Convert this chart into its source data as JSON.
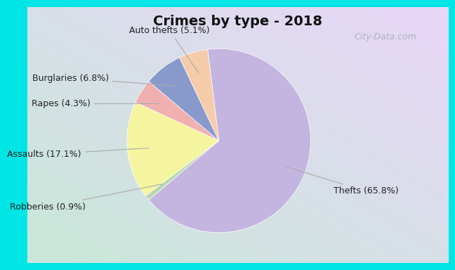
{
  "title": "Crimes by type - 2018",
  "slices": [
    {
      "label": "Thefts (65.8%)",
      "value": 65.8,
      "color": "#c4b5e0"
    },
    {
      "label": "Robberies (0.9%)",
      "value": 0.9,
      "color": "#b8d8b0"
    },
    {
      "label": "Assaults (17.1%)",
      "value": 17.1,
      "color": "#f5f5a0"
    },
    {
      "label": "Rapes (4.3%)",
      "value": 4.3,
      "color": "#f0b0b0"
    },
    {
      "label": "Burglaries (6.8%)",
      "value": 6.8,
      "color": "#8899cc"
    },
    {
      "label": "Auto thefts (5.1%)",
      "value": 5.1,
      "color": "#f5ccaa"
    }
  ],
  "title_fontsize": 14,
  "label_fontsize": 9,
  "border_color": "#00e5e5",
  "border_thickness": 0.04,
  "bg_color_topleft": "#c8e8d8",
  "bg_color_bottomright": "#e8e8f5",
  "watermark": "City-Data.com"
}
